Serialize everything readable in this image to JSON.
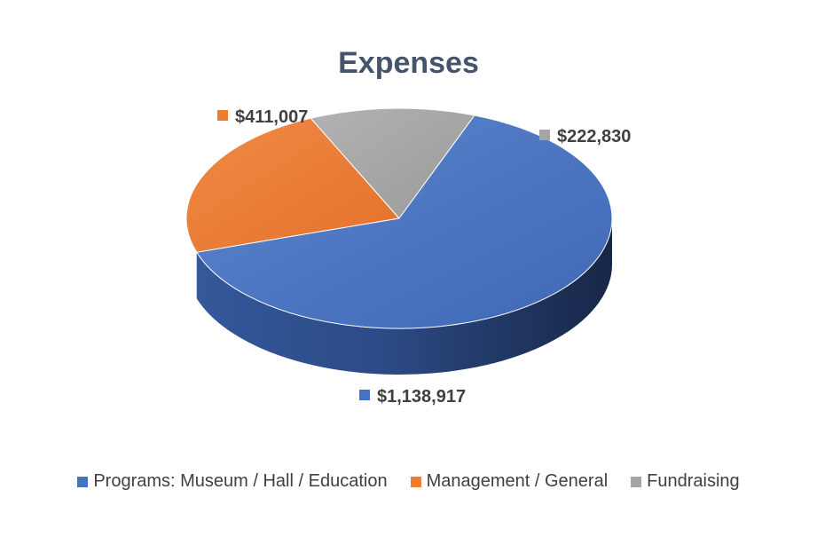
{
  "chart_data": {
    "type": "pie",
    "title": "Expenses",
    "categories": [
      "Programs: Museum / Hall / Education",
      "Management / General",
      "Fundraising"
    ],
    "values": [
      1138917,
      411007,
      222830
    ],
    "value_labels": [
      "$1,138,917",
      "$411,007",
      "$222,830"
    ],
    "colors": [
      "#4472c4",
      "#ed7d31",
      "#a5a5a5"
    ],
    "style": "3d",
    "legend_position": "bottom"
  }
}
